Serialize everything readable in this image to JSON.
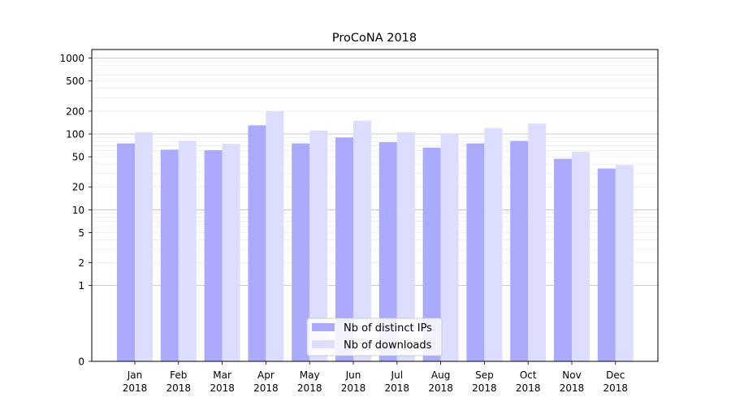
{
  "chart_data": {
    "type": "bar",
    "title": "ProCoNA 2018",
    "xlabel": "",
    "ylabel": "",
    "yscale": "symlog",
    "ylim": [
      0,
      1300
    ],
    "yticks": [
      {
        "value": 0,
        "label": "0"
      },
      {
        "value": 1,
        "label": "1"
      },
      {
        "value": 2,
        "label": "2"
      },
      {
        "value": 5,
        "label": "5"
      },
      {
        "value": 10,
        "label": "10"
      },
      {
        "value": 20,
        "label": "20"
      },
      {
        "value": 50,
        "label": "50"
      },
      {
        "value": 100,
        "label": "100"
      },
      {
        "value": 200,
        "label": "200"
      },
      {
        "value": 500,
        "label": "500"
      },
      {
        "value": 1000,
        "label": "1000"
      }
    ],
    "categories": [
      {
        "month": "Jan",
        "year": "2018"
      },
      {
        "month": "Feb",
        "year": "2018"
      },
      {
        "month": "Mar",
        "year": "2018"
      },
      {
        "month": "Apr",
        "year": "2018"
      },
      {
        "month": "May",
        "year": "2018"
      },
      {
        "month": "Jun",
        "year": "2018"
      },
      {
        "month": "Jul",
        "year": "2018"
      },
      {
        "month": "Aug",
        "year": "2018"
      },
      {
        "month": "Sep",
        "year": "2018"
      },
      {
        "month": "Oct",
        "year": "2018"
      },
      {
        "month": "Nov",
        "year": "2018"
      },
      {
        "month": "Dec",
        "year": "2018"
      }
    ],
    "series": [
      {
        "name": "Nb of distinct IPs",
        "color": "#aaaaff",
        "values": [
          75,
          62,
          61,
          130,
          75,
          90,
          78,
          66,
          75,
          81,
          47,
          35
        ]
      },
      {
        "name": "Nb of downloads",
        "color": "#ddddff",
        "values": [
          105,
          81,
          74,
          200,
          111,
          150,
          105,
          100,
          120,
          137,
          58,
          39
        ]
      }
    ],
    "grid": true,
    "legend_position": "bottom-center"
  }
}
